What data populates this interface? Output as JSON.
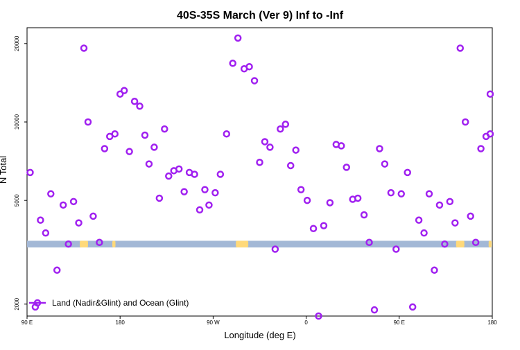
{
  "chart_data": {
    "type": "scatter",
    "title": "40S-35S March (Ver 9)   Inf to -Inf",
    "xlabel": "Longitude (deg E)",
    "ylabel": "N Total",
    "x_ticks": [
      {
        "value": 90,
        "label": "90 E"
      },
      {
        "value": 180,
        "label": "180"
      },
      {
        "value": 270,
        "label": "90 W"
      },
      {
        "value": 360,
        "label": "0"
      },
      {
        "value": 450,
        "label": "90 E"
      },
      {
        "value": 540,
        "label": "180"
      }
    ],
    "y_ticks": [
      {
        "value": 2000,
        "label": "2000"
      },
      {
        "value": 5000,
        "label": "5000"
      },
      {
        "value": 10000,
        "label": "10000"
      },
      {
        "value": 20000,
        "label": "20000"
      }
    ],
    "xlim": [
      90,
      540
    ],
    "ylim": [
      1800,
      23000
    ],
    "y_scale": "log",
    "grid": false,
    "legend_position": "bottom-left",
    "series": [
      {
        "name": "Land (Nadir&Glint) and Ocean (Glint)",
        "color": "#a020f0",
        "points": [
          [
            93,
            6400
          ],
          [
            98,
            1950
          ],
          [
            103,
            4200
          ],
          [
            108,
            3750
          ],
          [
            113,
            5300
          ],
          [
            119,
            2700
          ],
          [
            125,
            4800
          ],
          [
            130,
            3400
          ],
          [
            135,
            4950
          ],
          [
            140,
            4100
          ],
          [
            145,
            19200
          ],
          [
            149,
            10000
          ],
          [
            154,
            4350
          ],
          [
            160,
            3450
          ],
          [
            165,
            7900
          ],
          [
            170,
            8800
          ],
          [
            175,
            9000
          ],
          [
            180,
            12800
          ],
          [
            184,
            13200
          ],
          [
            189,
            7700
          ],
          [
            194,
            12000
          ],
          [
            199,
            11500
          ],
          [
            204,
            8900
          ],
          [
            208,
            6900
          ],
          [
            213,
            8000
          ],
          [
            218,
            5100
          ],
          [
            223,
            9400
          ],
          [
            227,
            6200
          ],
          [
            232,
            6500
          ],
          [
            237,
            6600
          ],
          [
            242,
            5400
          ],
          [
            247,
            6400
          ],
          [
            252,
            6300
          ],
          [
            257,
            4600
          ],
          [
            262,
            5500
          ],
          [
            266,
            4800
          ],
          [
            272,
            5350
          ],
          [
            277,
            6300
          ],
          [
            283,
            9000
          ],
          [
            289,
            16800
          ],
          [
            294,
            21000
          ],
          [
            300,
            16000
          ],
          [
            305,
            16300
          ],
          [
            310,
            14400
          ],
          [
            315,
            7000
          ],
          [
            320,
            8400
          ],
          [
            325,
            8000
          ],
          [
            330,
            3250
          ],
          [
            335,
            9400
          ],
          [
            340,
            9800
          ],
          [
            345,
            6800
          ],
          [
            350,
            7800
          ],
          [
            355,
            5500
          ],
          [
            361,
            5000
          ],
          [
            367,
            3900
          ],
          [
            372,
            1800
          ],
          [
            377,
            4000
          ],
          [
            383,
            4900
          ],
          [
            389,
            8200
          ],
          [
            394,
            8100
          ],
          [
            399,
            6700
          ],
          [
            405,
            5050
          ],
          [
            410,
            5100
          ],
          [
            416,
            4400
          ],
          [
            421,
            3450
          ],
          [
            426,
            1900
          ],
          [
            431,
            7900
          ],
          [
            436,
            6900
          ],
          [
            442,
            5350
          ],
          [
            447,
            3250
          ],
          [
            452,
            5300
          ],
          [
            458,
            6400
          ],
          [
            463,
            1950
          ],
          [
            469,
            4200
          ],
          [
            474,
            3750
          ],
          [
            479,
            5300
          ],
          [
            484,
            2700
          ],
          [
            489,
            4800
          ],
          [
            494,
            3400
          ],
          [
            499,
            4950
          ],
          [
            504,
            4100
          ],
          [
            509,
            19200
          ],
          [
            514,
            10000
          ],
          [
            519,
            4350
          ],
          [
            524,
            3450
          ],
          [
            529,
            7900
          ],
          [
            534,
            8800
          ],
          [
            539,
            9000
          ],
          [
            544,
            12800
          ]
        ]
      }
    ],
    "band": {
      "y_low": 3300,
      "y_high": 3500,
      "color": "#a3b8d6"
    },
    "land_patches": [
      {
        "x_center": 145,
        "width": 8
      },
      {
        "x_center": 174,
        "width": 3
      },
      {
        "x_center": 298,
        "width": 12
      },
      {
        "x_center": 509,
        "width": 8
      },
      {
        "x_center": 538,
        "width": 3
      }
    ],
    "land_color": "#ffd97a"
  }
}
